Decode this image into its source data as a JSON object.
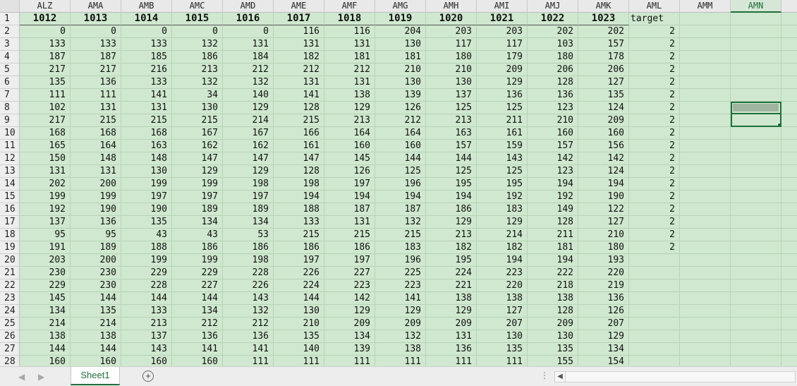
{
  "columns": [
    "ALZ",
    "AMA",
    "AMB",
    "AMC",
    "AMD",
    "AME",
    "AMF",
    "AMG",
    "AMH",
    "AMI",
    "AMJ",
    "AMK",
    "AML",
    "AMM",
    "AMN"
  ],
  "selected_column": "AMN",
  "header_row": [
    "1012",
    "1013",
    "1014",
    "1015",
    "1016",
    "1017",
    "1018",
    "1019",
    "1020",
    "1021",
    "1022",
    "1023",
    "target"
  ],
  "rows": [
    {
      "n": "2",
      "v": [
        "0",
        "0",
        "0",
        "0",
        "0",
        "116",
        "116",
        "204",
        "203",
        "203",
        "202",
        "202",
        "2"
      ]
    },
    {
      "n": "3",
      "v": [
        "133",
        "133",
        "133",
        "132",
        "131",
        "131",
        "131",
        "130",
        "117",
        "117",
        "103",
        "157",
        "2"
      ]
    },
    {
      "n": "4",
      "v": [
        "187",
        "187",
        "185",
        "186",
        "184",
        "182",
        "181",
        "181",
        "180",
        "179",
        "180",
        "178",
        "2"
      ]
    },
    {
      "n": "5",
      "v": [
        "217",
        "217",
        "216",
        "213",
        "212",
        "212",
        "212",
        "210",
        "210",
        "209",
        "206",
        "206",
        "2"
      ]
    },
    {
      "n": "6",
      "v": [
        "135",
        "136",
        "133",
        "132",
        "132",
        "131",
        "131",
        "130",
        "130",
        "129",
        "128",
        "127",
        "2"
      ]
    },
    {
      "n": "7",
      "v": [
        "111",
        "111",
        "141",
        "34",
        "140",
        "141",
        "138",
        "139",
        "137",
        "136",
        "136",
        "135",
        "2"
      ]
    },
    {
      "n": "8",
      "v": [
        "102",
        "131",
        "131",
        "130",
        "129",
        "128",
        "129",
        "126",
        "125",
        "125",
        "123",
        "124",
        "2"
      ]
    },
    {
      "n": "9",
      "v": [
        "217",
        "215",
        "215",
        "215",
        "214",
        "215",
        "213",
        "212",
        "213",
        "211",
        "210",
        "209",
        "2"
      ]
    },
    {
      "n": "10",
      "v": [
        "168",
        "168",
        "168",
        "167",
        "167",
        "166",
        "164",
        "164",
        "163",
        "161",
        "160",
        "160",
        "2"
      ]
    },
    {
      "n": "11",
      "v": [
        "165",
        "164",
        "163",
        "162",
        "162",
        "161",
        "160",
        "160",
        "157",
        "159",
        "157",
        "156",
        "2"
      ]
    },
    {
      "n": "12",
      "v": [
        "150",
        "148",
        "148",
        "147",
        "147",
        "147",
        "145",
        "144",
        "144",
        "143",
        "142",
        "142",
        "2"
      ]
    },
    {
      "n": "13",
      "v": [
        "131",
        "131",
        "130",
        "129",
        "129",
        "128",
        "126",
        "125",
        "125",
        "125",
        "123",
        "124",
        "2"
      ]
    },
    {
      "n": "14",
      "v": [
        "202",
        "200",
        "199",
        "199",
        "198",
        "198",
        "197",
        "196",
        "195",
        "195",
        "194",
        "194",
        "2"
      ]
    },
    {
      "n": "15",
      "v": [
        "199",
        "199",
        "197",
        "197",
        "197",
        "194",
        "194",
        "194",
        "194",
        "192",
        "192",
        "190",
        "2"
      ]
    },
    {
      "n": "16",
      "v": [
        "192",
        "190",
        "190",
        "189",
        "189",
        "188",
        "187",
        "187",
        "186",
        "183",
        "149",
        "122",
        "2"
      ]
    },
    {
      "n": "17",
      "v": [
        "137",
        "136",
        "135",
        "134",
        "134",
        "133",
        "131",
        "132",
        "129",
        "129",
        "128",
        "127",
        "2"
      ]
    },
    {
      "n": "18",
      "v": [
        "95",
        "95",
        "43",
        "43",
        "53",
        "215",
        "215",
        "215",
        "213",
        "214",
        "211",
        "210",
        "2"
      ]
    },
    {
      "n": "19",
      "v": [
        "191",
        "189",
        "188",
        "186",
        "186",
        "186",
        "186",
        "183",
        "182",
        "182",
        "181",
        "180",
        "2"
      ]
    },
    {
      "n": "20",
      "v": [
        "203",
        "200",
        "199",
        "199",
        "198",
        "197",
        "197",
        "196",
        "195",
        "194",
        "194",
        "193",
        ""
      ]
    },
    {
      "n": "21",
      "v": [
        "230",
        "230",
        "229",
        "229",
        "228",
        "226",
        "227",
        "225",
        "224",
        "223",
        "222",
        "220",
        ""
      ]
    },
    {
      "n": "22",
      "v": [
        "229",
        "230",
        "228",
        "227",
        "226",
        "224",
        "223",
        "223",
        "221",
        "220",
        "218",
        "219",
        ""
      ]
    },
    {
      "n": "23",
      "v": [
        "145",
        "144",
        "144",
        "144",
        "143",
        "144",
        "142",
        "141",
        "138",
        "138",
        "138",
        "136",
        ""
      ]
    },
    {
      "n": "24",
      "v": [
        "134",
        "135",
        "133",
        "134",
        "132",
        "130",
        "129",
        "129",
        "129",
        "127",
        "128",
        "126",
        ""
      ]
    },
    {
      "n": "25",
      "v": [
        "214",
        "214",
        "213",
        "212",
        "212",
        "210",
        "209",
        "209",
        "209",
        "207",
        "209",
        "207",
        ""
      ]
    },
    {
      "n": "26",
      "v": [
        "138",
        "138",
        "137",
        "136",
        "136",
        "135",
        "134",
        "132",
        "131",
        "130",
        "130",
        "129",
        ""
      ]
    },
    {
      "n": "27",
      "v": [
        "144",
        "144",
        "143",
        "141",
        "141",
        "140",
        "139",
        "138",
        "136",
        "135",
        "135",
        "134",
        ""
      ]
    },
    {
      "n": "28",
      "v": [
        "160",
        "160",
        "160",
        "160",
        "111",
        "111",
        "111",
        "111",
        "111",
        "111",
        "155",
        "154",
        ""
      ]
    }
  ],
  "sheet_tab": "Sheet1",
  "add_sheet": "+",
  "nav_prev": "◀",
  "nav_next": "▶",
  "scroll_dots": "⋮",
  "scroll_left": "◀"
}
